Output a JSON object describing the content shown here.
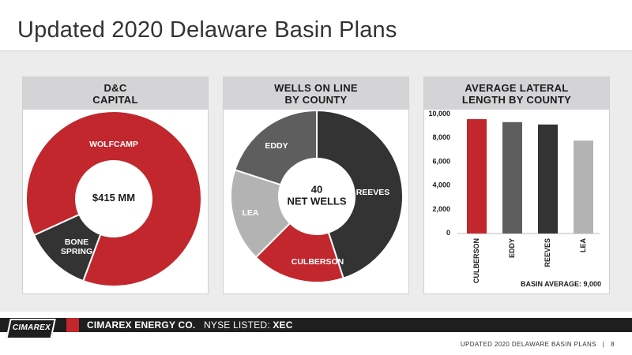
{
  "title": "Updated 2020 Delaware Basin Plans",
  "panels": {
    "capital_header": "D&C\nCAPITAL",
    "wells_header": "WELLS ON LINE\nBY COUNTY",
    "lateral_header": "AVERAGE LATERAL\nLENGTH BY COUNTY"
  },
  "footer": {
    "logo": "CIMAREX",
    "company": "CIMAREX ENERGY CO.",
    "listing_prefix": "NYSE LISTED:",
    "ticker": "XEC",
    "page_label": "UPDATED 2020 DELAWARE BASIN PLANS",
    "separator": "|",
    "page_number": "8"
  },
  "colors": {
    "red": "#c1272d",
    "dark": "#333333",
    "mid_gray": "#5e5e5e",
    "light_gray": "#b3b3b3",
    "panel_header": "#d4d4d7"
  },
  "chart_data": [
    {
      "type": "pie",
      "title": "D&C CAPITAL",
      "center_label": "$415 MM",
      "slices": [
        {
          "label": "WOLFCAMP",
          "value": 0.875,
          "color": "#c1272d"
        },
        {
          "label": "BONE\nSPRING",
          "value": 0.125,
          "color": "#333333"
        }
      ]
    },
    {
      "type": "pie",
      "title": "WELLS ON LINE BY COUNTY",
      "center_label": "40\nNET WELLS",
      "slices": [
        {
          "label": "REEVES",
          "value": 18,
          "color": "#333333"
        },
        {
          "label": "CULBERSON",
          "value": 7,
          "color": "#c1272d"
        },
        {
          "label": "LEA",
          "value": 7,
          "color": "#b3b3b3"
        },
        {
          "label": "EDDY",
          "value": 8,
          "color": "#5e5e5e"
        }
      ]
    },
    {
      "type": "bar",
      "title": "AVERAGE LATERAL LENGTH BY COUNTY",
      "categories": [
        "CULBERSON",
        "EDDY",
        "REEVES",
        "LEA"
      ],
      "values": [
        9600,
        9350,
        9150,
        7800
      ],
      "colors": [
        "#c1272d",
        "#5e5e5e",
        "#333333",
        "#b3b3b3"
      ],
      "ylim": [
        0,
        10000
      ],
      "yticks": [
        "0",
        "2,000",
        "4,000",
        "6,000",
        "8,000",
        "10,000"
      ],
      "annotation": "BASIN AVERAGE: 9,000"
    }
  ]
}
